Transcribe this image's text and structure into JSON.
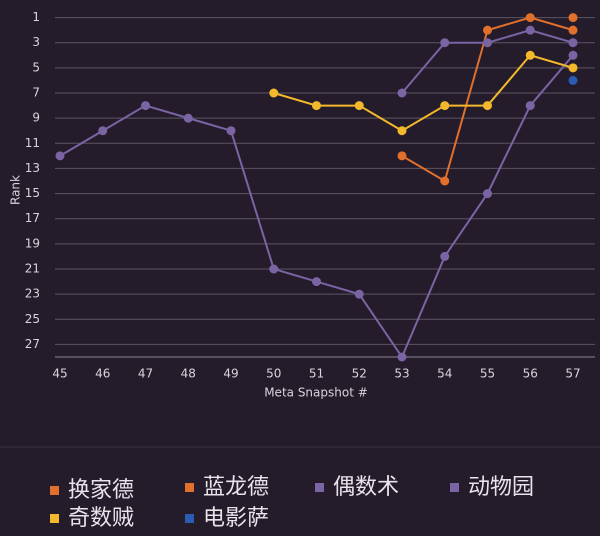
{
  "chart_data": {
    "type": "line",
    "y_label": "Rank",
    "x_label": "Meta Snapshot #",
    "x": [
      45,
      46,
      47,
      48,
      49,
      50,
      51,
      52,
      53,
      54,
      55,
      56,
      57
    ],
    "xlim": [
      45,
      57
    ],
    "xticks": [
      45,
      46,
      47,
      48,
      49,
      50,
      51,
      52,
      53,
      54,
      55,
      56,
      57
    ],
    "ylim": [
      28,
      0
    ],
    "yticks": [
      1,
      3,
      5,
      7,
      9,
      11,
      13,
      15,
      17,
      19,
      21,
      23,
      25,
      27
    ],
    "grid": true,
    "series": [
      {
        "name": "换家德",
        "color": "#e0702c",
        "values": [
          null,
          null,
          null,
          null,
          null,
          null,
          null,
          null,
          12,
          14,
          2,
          1,
          2
        ]
      },
      {
        "name": "蓝龙德",
        "color": "#e0702c",
        "values": [
          null,
          null,
          null,
          null,
          null,
          null,
          null,
          null,
          null,
          null,
          null,
          null,
          1
        ]
      },
      {
        "name": "偶数术",
        "color": "#7a64a4",
        "values": [
          12,
          10,
          8,
          9,
          10,
          21,
          22,
          23,
          28,
          20,
          15,
          8,
          4
        ]
      },
      {
        "name": "动物园",
        "color": "#7a64a4",
        "values": [
          null,
          null,
          null,
          null,
          null,
          null,
          null,
          null,
          7,
          3,
          3,
          2,
          3
        ]
      },
      {
        "name": "奇数贼",
        "color": "#f4b82c",
        "values": [
          null,
          null,
          null,
          null,
          null,
          7,
          8,
          8,
          10,
          8,
          8,
          4,
          5
        ]
      },
      {
        "name": "电影萨",
        "color": "#2a5cb4",
        "values": [
          null,
          null,
          null,
          null,
          null,
          null,
          null,
          null,
          null,
          null,
          null,
          null,
          6
        ]
      }
    ]
  }
}
